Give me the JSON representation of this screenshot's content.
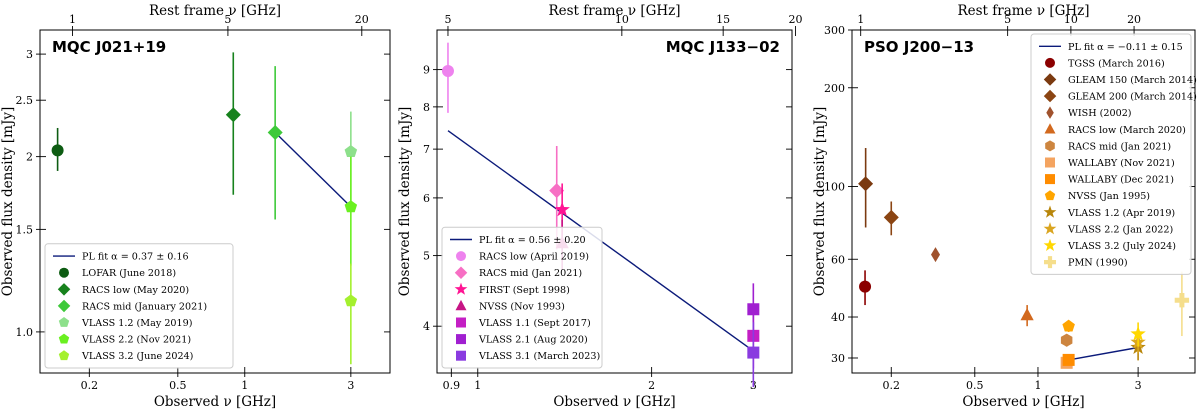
{
  "chart_data": [
    {
      "type": "scatter",
      "title": "MQC J021+19",
      "xlabel": "Observed ν [GHz]",
      "ylabel": "Observed flux density [mJy]",
      "top_xlabel": "Rest frame ν [GHz]",
      "xscale": "log",
      "yscale": "log",
      "xlim": [
        0.12,
        4.5
      ],
      "ylim": [
        0.85,
        3.3
      ],
      "xticks": [
        {
          "v": 0.2,
          "label": "0.2"
        },
        {
          "v": 0.5,
          "label": "0.5"
        },
        {
          "v": 1,
          "label": "1"
        },
        {
          "v": 3,
          "label": "3"
        }
      ],
      "top_ticks": [
        {
          "v": 0.168,
          "label": "1"
        },
        {
          "v": 0.84,
          "label": "5"
        },
        {
          "v": 3.36,
          "label": "20"
        }
      ],
      "yticks": [
        {
          "v": 1.0,
          "label": "1.0"
        },
        {
          "v": 1.5,
          "label": "1.5"
        },
        {
          "v": 2,
          "label": "2"
        },
        {
          "v": 2.5,
          "label": "2.5"
        },
        {
          "v": 3,
          "label": "3"
        }
      ],
      "legend_position": "lower-left",
      "fit": {
        "label": "PL fit α = 0.37 ± 0.16",
        "color": "#0b1a7a",
        "x": [
          1.37,
          3.0
        ],
        "y": [
          2.2,
          1.64
        ]
      },
      "series": [
        {
          "name": "LOFAR (June 2018)",
          "marker": "circle",
          "color": "#0d5c12",
          "points": [
            {
              "x": 0.144,
              "y": 2.05,
              "lo": 1.89,
              "hi": 2.24
            }
          ]
        },
        {
          "name": "RACS low (May 2020)",
          "marker": "diamond",
          "color": "#17821d",
          "points": [
            {
              "x": 0.888,
              "y": 2.36,
              "lo": 1.72,
              "hi": 3.02
            }
          ]
        },
        {
          "name": "RACS mid (January 2021)",
          "marker": "diamond",
          "color": "#3ec93a",
          "points": [
            {
              "x": 1.37,
              "y": 2.2,
              "lo": 1.56,
              "hi": 2.86
            }
          ]
        },
        {
          "name": "VLASS 1.2 (May 2019)",
          "marker": "pentagon",
          "color": "#8de08b",
          "points": [
            {
              "x": 3.0,
              "y": 2.04,
              "lo": 1.68,
              "hi": 2.39
            }
          ]
        },
        {
          "name": "VLASS 2.2 (Nov 2021)",
          "marker": "pentagon",
          "color": "#6af020",
          "points": [
            {
              "x": 3.0,
              "y": 1.64,
              "lo": 1.3,
              "hi": 2.0
            }
          ]
        },
        {
          "name": "VLASS 3.2 (June 2024)",
          "marker": "pentagon",
          "color": "#a4f02e",
          "points": [
            {
              "x": 3.0,
              "y": 1.13,
              "lo": 0.88,
              "hi": 1.31
            }
          ]
        }
      ]
    },
    {
      "type": "scatter",
      "title": "MQC J133−02",
      "xlabel": "Observed ν [GHz]",
      "ylabel": "Observed flux density [mJy]",
      "top_xlabel": "Rest frame ν [GHz]",
      "xscale": "log",
      "yscale": "log",
      "xlim": [
        0.85,
        3.5
      ],
      "ylim": [
        3.45,
        10.2
      ],
      "xticks": [
        {
          "v": 0.9,
          "label": "0.9"
        },
        {
          "v": 1,
          "label": "1"
        },
        {
          "v": 2,
          "label": "2"
        },
        {
          "v": 3,
          "label": "3"
        }
      ],
      "top_ticks": [
        {
          "v": 0.888,
          "label": "5"
        },
        {
          "v": 1.776,
          "label": "10"
        },
        {
          "v": 2.66,
          "label": "15"
        },
        {
          "v": 3.55,
          "label": "20"
        }
      ],
      "yticks": [
        {
          "v": 4,
          "label": "4"
        },
        {
          "v": 5,
          "label": "5"
        },
        {
          "v": 6,
          "label": "6"
        },
        {
          "v": 7,
          "label": "7"
        },
        {
          "v": 8,
          "label": "8"
        },
        {
          "v": 9,
          "label": "9"
        }
      ],
      "legend_position": "lower-left",
      "fit": {
        "label": "PL fit α = 0.56 ± 0.20",
        "color": "#0b1a7a",
        "x": [
          0.888,
          3.0
        ],
        "y": [
          7.42,
          3.7
        ]
      },
      "series": [
        {
          "name": "RACS low (April 2019)",
          "marker": "circle",
          "color": "#ee82ee",
          "points": [
            {
              "x": 0.888,
              "y": 8.96,
              "lo": 7.85,
              "hi": 9.8
            }
          ]
        },
        {
          "name": "RACS mid (Jan 2021)",
          "marker": "diamond",
          "color": "#f76fc4",
          "points": [
            {
              "x": 1.37,
              "y": 6.14,
              "lo": 5.1,
              "hi": 7.07
            }
          ]
        },
        {
          "name": "FIRST (Sept 1998)",
          "marker": "star",
          "color": "#ff1493",
          "points": [
            {
              "x": 1.4,
              "y": 5.78,
              "lo": 5.25,
              "hi": 6.28
            }
          ]
        },
        {
          "name": "NVSS (Nov 1993)",
          "marker": "triangle",
          "color": "#c71585",
          "points": [
            {
              "x": 1.4,
              "y": 5.2,
              "lo": 4.78,
              "hi": 5.6
            }
          ]
        },
        {
          "name": "VLASS 1.1 (Sept 2017)",
          "marker": "square",
          "color": "#c41fc4",
          "points": [
            {
              "x": 3.0,
              "y": 3.88,
              "lo": 3.5,
              "hi": 4.22
            }
          ]
        },
        {
          "name": "VLASS 2.1 (Aug 2020)",
          "marker": "square",
          "color": "#a01fd0",
          "points": [
            {
              "x": 3.0,
              "y": 4.22,
              "lo": 3.82,
              "hi": 4.58
            }
          ]
        },
        {
          "name": "VLASS 3.1 (March 2023)",
          "marker": "square",
          "color": "#8a3be0",
          "points": [
            {
              "x": 3.0,
              "y": 3.68,
              "lo": 3.3,
              "hi": 4.05
            }
          ]
        }
      ]
    },
    {
      "type": "scatter",
      "title": "PSO J200−13",
      "xlabel": "Observed ν [GHz]",
      "ylabel": "Observed flux density [mJy]",
      "top_xlabel": "Rest frame ν [GHz]",
      "xscale": "log",
      "yscale": "log",
      "xlim": [
        0.13,
        5.6
      ],
      "ylim": [
        27,
        300
      ],
      "xticks": [
        {
          "v": 0.2,
          "label": "0.2"
        },
        {
          "v": 0.5,
          "label": "0.5"
        },
        {
          "v": 1,
          "label": "1"
        },
        {
          "v": 3,
          "label": "3"
        }
      ],
      "top_ticks": [
        {
          "v": 0.143,
          "label": "1"
        },
        {
          "v": 0.717,
          "label": "5"
        },
        {
          "v": 1.435,
          "label": "10"
        },
        {
          "v": 2.87,
          "label": "20"
        }
      ],
      "yticks": [
        {
          "v": 30,
          "label": "30"
        },
        {
          "v": 40,
          "label": "40"
        },
        {
          "v": 60,
          "label": "60"
        },
        {
          "v": 100,
          "label": "100"
        },
        {
          "v": 200,
          "label": "200"
        },
        {
          "v": 300,
          "label": "300"
        }
      ],
      "legend_position": "top-right",
      "fit": {
        "label": "PL fit α = −0.11 ± 0.15",
        "color": "#0b1a7a",
        "x": [
          1.4,
          3.0
        ],
        "y": [
          29.6,
          32.3
        ]
      },
      "series": [
        {
          "name": "TGSS (March 2016)",
          "marker": "circle",
          "color": "#8b0000",
          "points": [
            {
              "x": 0.15,
              "y": 49.5,
              "lo": 43.5,
              "hi": 55.5
            }
          ]
        },
        {
          "name": "GLEAM 150 (March 2014)",
          "marker": "diamond",
          "color": "#7b3a10",
          "points": [
            {
              "x": 0.151,
              "y": 102,
              "lo": 75,
              "hi": 131
            }
          ]
        },
        {
          "name": "GLEAM 200 (March 2014)",
          "marker": "diamond",
          "color": "#8b4513",
          "points": [
            {
              "x": 0.2,
              "y": 80.5,
              "lo": 71,
              "hi": 90
            }
          ]
        },
        {
          "name": "WISH (2002)",
          "marker": "thin-diamond",
          "color": "#a0522d",
          "points": [
            {
              "x": 0.325,
              "y": 62,
              "lo": 60,
              "hi": 64
            }
          ]
        },
        {
          "name": "RACS low (March 2020)",
          "marker": "triangle",
          "color": "#d2691e",
          "points": [
            {
              "x": 0.888,
              "y": 40.5,
              "lo": 37.5,
              "hi": 43.5
            }
          ]
        },
        {
          "name": "RACS mid (Jan 2021)",
          "marker": "hexagon",
          "color": "#cd853f",
          "points": [
            {
              "x": 1.37,
              "y": 34,
              "lo": 32.5,
              "hi": 35.5
            }
          ]
        },
        {
          "name": "WALLABY (Nov 2021)",
          "marker": "square",
          "color": "#f4a460",
          "points": [
            {
              "x": 1.37,
              "y": 29,
              "lo": 28,
              "hi": 30
            }
          ]
        },
        {
          "name": "WALLABY (Dec 2021)",
          "marker": "square",
          "color": "#ff8c00",
          "points": [
            {
              "x": 1.4,
              "y": 29.6,
              "lo": 28.8,
              "hi": 30.4
            }
          ]
        },
        {
          "name": "NVSS (Jan 1995)",
          "marker": "pentagon",
          "color": "#ffa500",
          "points": [
            {
              "x": 1.4,
              "y": 37.5,
              "lo": 36,
              "hi": 39
            }
          ]
        },
        {
          "name": "VLASS 1.2 (Apr 2019)",
          "marker": "star",
          "color": "#b8860b",
          "points": [
            {
              "x": 3.0,
              "y": 32.3,
              "lo": 29.5,
              "hi": 35.5
            }
          ]
        },
        {
          "name": "VLASS 2.2 (Jan 2022)",
          "marker": "star",
          "color": "#daa520",
          "points": [
            {
              "x": 3.0,
              "y": 33.5,
              "lo": 31,
              "hi": 36.5
            }
          ]
        },
        {
          "name": "VLASS 3.2 (July 2024)",
          "marker": "star",
          "color": "#ffd700",
          "points": [
            {
              "x": 3.0,
              "y": 35.5,
              "lo": 32.5,
              "hi": 38.5
            }
          ]
        },
        {
          "name": "PMN (1990)",
          "marker": "plus",
          "color": "#f5de8c",
          "points": [
            {
              "x": 4.85,
              "y": 45,
              "lo": 35,
              "hi": 55
            }
          ]
        }
      ]
    }
  ]
}
